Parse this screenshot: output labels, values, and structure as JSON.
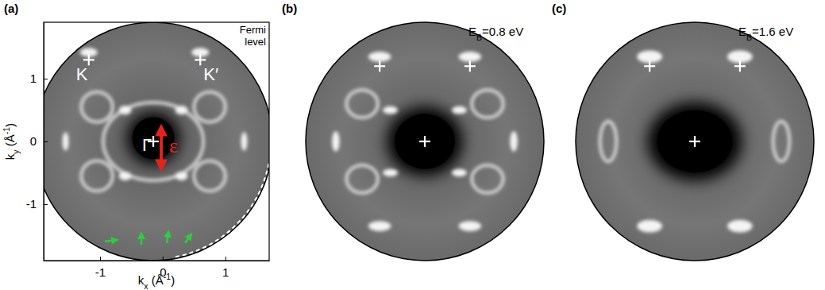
{
  "chart_data": [
    {
      "type": "momentum_map",
      "panel_label": "(a)",
      "corner_label": [
        "Fermi",
        "level"
      ],
      "x_label": {
        "symbol": "k",
        "sub": "x",
        "unit": " (Å",
        "sup": "-1",
        "close": ")"
      },
      "y_label": {
        "symbol": "k",
        "sub": "y",
        "unit": " (Å",
        "sup": "-1",
        "close": ")"
      },
      "xlim": [
        -1.9,
        1.7
      ],
      "ylim": [
        -1.9,
        1.9
      ],
      "xticks": [
        -1,
        0,
        1
      ],
      "yticks": [
        -1,
        0,
        1
      ],
      "circle": {
        "kx": -0.15,
        "ky": 0,
        "r": 1.9
      },
      "dark_center": {
        "kx": -0.15,
        "ky": 0.05,
        "rx": 0.42,
        "ry": 0.42
      },
      "rings": [
        {
          "kx": -1.05,
          "ky": 0.55,
          "rx": 0.25,
          "ry": 0.24
        },
        {
          "kx": 0.75,
          "ky": 0.55,
          "rx": 0.25,
          "ry": 0.24
        },
        {
          "kx": -1.05,
          "ky": -0.55,
          "rx": 0.25,
          "ry": 0.24
        },
        {
          "kx": 0.75,
          "ky": -0.55,
          "rx": 0.25,
          "ry": 0.24
        },
        {
          "kx": -0.15,
          "ky": 0,
          "rx": 0.8,
          "ry": 0.62
        }
      ],
      "spots": [
        {
          "kx": -1.18,
          "ky": 1.42,
          "rx": 0.14,
          "ry": 0.07
        },
        {
          "kx": 0.6,
          "ky": 1.42,
          "rx": 0.14,
          "ry": 0.07
        },
        {
          "kx": -0.6,
          "ky": 0.5,
          "rx": 0.1,
          "ry": 0.07
        },
        {
          "kx": 0.3,
          "ky": 0.5,
          "rx": 0.1,
          "ry": 0.07
        },
        {
          "kx": -0.6,
          "ky": -0.55,
          "rx": 0.1,
          "ry": 0.07
        },
        {
          "kx": 0.3,
          "ky": -0.55,
          "rx": 0.1,
          "ry": 0.07
        },
        {
          "kx": -1.55,
          "ky": 0,
          "rx": 0.05,
          "ry": 0.15
        },
        {
          "kx": 1.3,
          "ky": 0,
          "rx": 0.05,
          "ry": 0.15
        }
      ],
      "points": [
        {
          "label": "K",
          "kx": -1.18,
          "ky": 1.3
        },
        {
          "label": "K′",
          "kx": 0.6,
          "ky": 1.3
        },
        {
          "label": "Γ",
          "kx": -0.15,
          "ky": 0
        }
      ],
      "polarization_label": "ε"
    },
    {
      "type": "momentum_map",
      "panel_label": "(b)",
      "tick_labels": false,
      "energy_label": {
        "symbol": "E",
        "sub": "B",
        "text": "=0.8 eV"
      },
      "circle": {
        "kx": 0,
        "ky": 0,
        "r": 1.9
      },
      "dark_center": {
        "kx": 0,
        "ky": 0,
        "rx": 0.6,
        "ry": 0.55
      },
      "rings": [
        {
          "kx": -1.0,
          "ky": 0.6,
          "rx": 0.25,
          "ry": 0.22
        },
        {
          "kx": 1.0,
          "ky": 0.6,
          "rx": 0.25,
          "ry": 0.22
        },
        {
          "kx": -1.0,
          "ky": -0.6,
          "rx": 0.25,
          "ry": 0.22
        },
        {
          "kx": 1.0,
          "ky": -0.6,
          "rx": 0.25,
          "ry": 0.22
        }
      ],
      "spots": [
        {
          "kx": -0.55,
          "ky": 0.5,
          "rx": 0.12,
          "ry": 0.06
        },
        {
          "kx": 0.55,
          "ky": 0.5,
          "rx": 0.12,
          "ry": 0.06
        },
        {
          "kx": -0.55,
          "ky": -0.5,
          "rx": 0.12,
          "ry": 0.06
        },
        {
          "kx": 0.55,
          "ky": -0.5,
          "rx": 0.12,
          "ry": 0.06
        },
        {
          "kx": -1.42,
          "ky": 0,
          "rx": 0.06,
          "ry": 0.16
        },
        {
          "kx": 1.42,
          "ky": 0,
          "rx": 0.06,
          "ry": 0.16
        },
        {
          "kx": -0.72,
          "ky": 1.35,
          "rx": 0.18,
          "ry": 0.08
        },
        {
          "kx": 0.72,
          "ky": 1.35,
          "rx": 0.18,
          "ry": 0.08
        },
        {
          "kx": -0.72,
          "ky": -1.35,
          "rx": 0.18,
          "ry": 0.08
        },
        {
          "kx": 0.72,
          "ky": -1.35,
          "rx": 0.18,
          "ry": 0.08
        }
      ],
      "points": [
        {
          "kx": -0.72,
          "ky": 1.2
        },
        {
          "kx": 0.72,
          "ky": 1.2
        },
        {
          "kx": 0,
          "ky": 0
        }
      ]
    },
    {
      "type": "momentum_map",
      "panel_label": "(c)",
      "tick_labels": false,
      "energy_label": {
        "symbol": "E",
        "sub": "B",
        "text": "=1.6 eV"
      },
      "circle": {
        "kx": 0,
        "ky": 0,
        "r": 1.9
      },
      "dark_center": {
        "kx": 0,
        "ky": 0,
        "rx": 0.75,
        "ry": 0.62
      },
      "rings": [
        {
          "kx": -1.38,
          "ky": 0,
          "rx": 0.13,
          "ry": 0.32
        },
        {
          "kx": 1.38,
          "ky": 0,
          "rx": 0.13,
          "ry": 0.32
        }
      ],
      "spots": [
        {
          "kx": -0.72,
          "ky": 1.35,
          "rx": 0.2,
          "ry": 0.1
        },
        {
          "kx": 0.72,
          "ky": 1.35,
          "rx": 0.2,
          "ry": 0.1
        },
        {
          "kx": -0.72,
          "ky": -1.35,
          "rx": 0.2,
          "ry": 0.1
        },
        {
          "kx": 0.72,
          "ky": -1.35,
          "rx": 0.2,
          "ry": 0.1
        }
      ],
      "points": [
        {
          "kx": -0.72,
          "ky": 1.2
        },
        {
          "kx": 0.72,
          "ky": 1.2
        },
        {
          "kx": 0,
          "ky": 0
        }
      ]
    }
  ]
}
